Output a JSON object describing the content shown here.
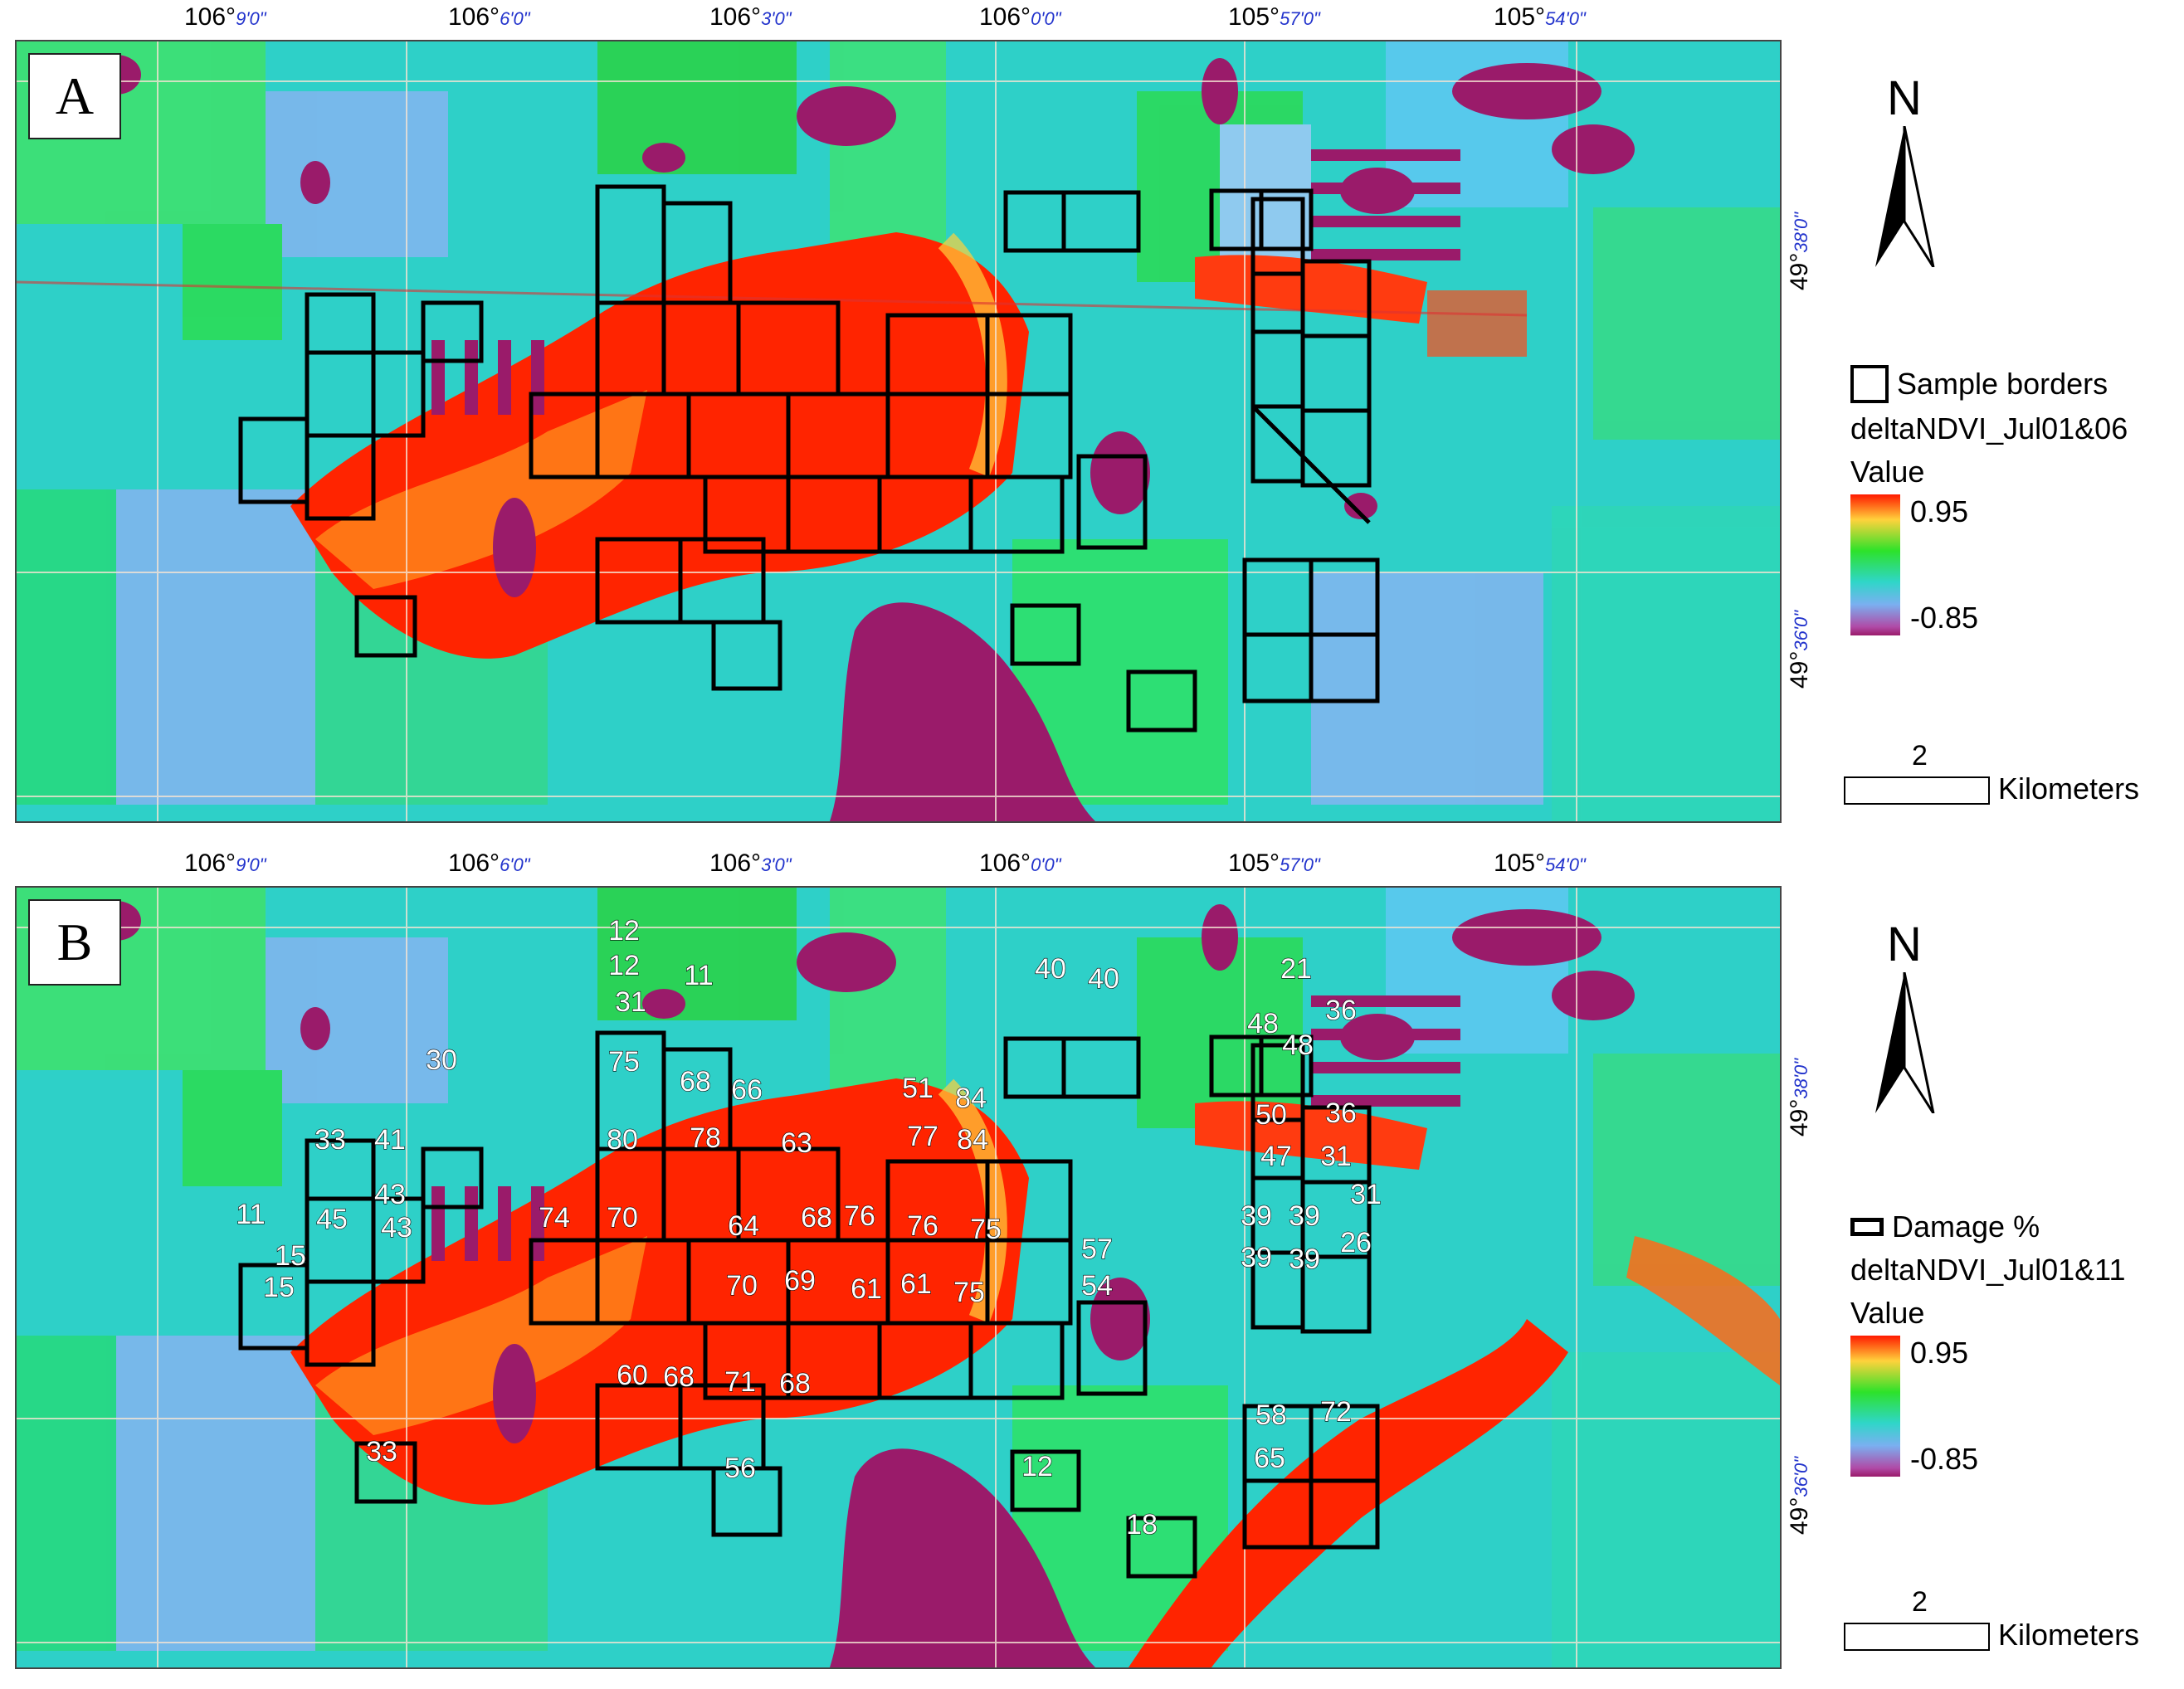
{
  "panel_a": {
    "letter": "A",
    "legend_sample_label": "Sample borders",
    "legend_layer": "deltaNDVI_Jul01&06",
    "legend_value": "Value",
    "ramp_max": "0.95",
    "ramp_min": "-0.85"
  },
  "panel_b": {
    "letter": "B",
    "legend_sample_label": "Damage %",
    "legend_layer": "deltaNDVI_Jul01&11",
    "legend_value": "Value",
    "ramp_max": "0.95",
    "ramp_min": "-0.85",
    "damage_labels": [
      "12",
      "12",
      "11",
      "31",
      "40",
      "40",
      "21",
      "48",
      "36",
      "48",
      "75",
      "68",
      "66",
      "51",
      "84",
      "50",
      "36",
      "30",
      "33",
      "41",
      "80",
      "78",
      "63",
      "77",
      "84",
      "47",
      "31",
      "31",
      "11",
      "45",
      "43",
      "43",
      "74",
      "70",
      "64",
      "68",
      "76",
      "76",
      "75",
      "39",
      "39",
      "26",
      "57",
      "15",
      "15",
      "70",
      "69",
      "61",
      "61",
      "75",
      "54",
      "39",
      "39",
      "60",
      "68",
      "71",
      "68",
      "58",
      "72",
      "33",
      "56",
      "65",
      "12",
      "18"
    ]
  },
  "north_label": "N",
  "scale": {
    "value": "2",
    "unit": "Kilometers"
  },
  "longitudes": [
    {
      "deg": "106°",
      "min": "9'0\""
    },
    {
      "deg": "106°",
      "min": "6'0\""
    },
    {
      "deg": "106°",
      "min": "3'0\""
    },
    {
      "deg": "106°",
      "min": "0'0\""
    },
    {
      "deg": "105°",
      "min": "57'0\""
    },
    {
      "deg": "105°",
      "min": "54'0\""
    }
  ],
  "latitudes": [
    {
      "deg": "49°",
      "min": "38'0\""
    },
    {
      "deg": "49°",
      "min": "36'0\""
    }
  ],
  "colors": {
    "high": "#ff1a00",
    "mid_high": "#2de22a",
    "mid": "#2ed0c8",
    "low_mid": "#7ab0f0",
    "low": "#9a1b6a",
    "sample_border": "#000000"
  }
}
